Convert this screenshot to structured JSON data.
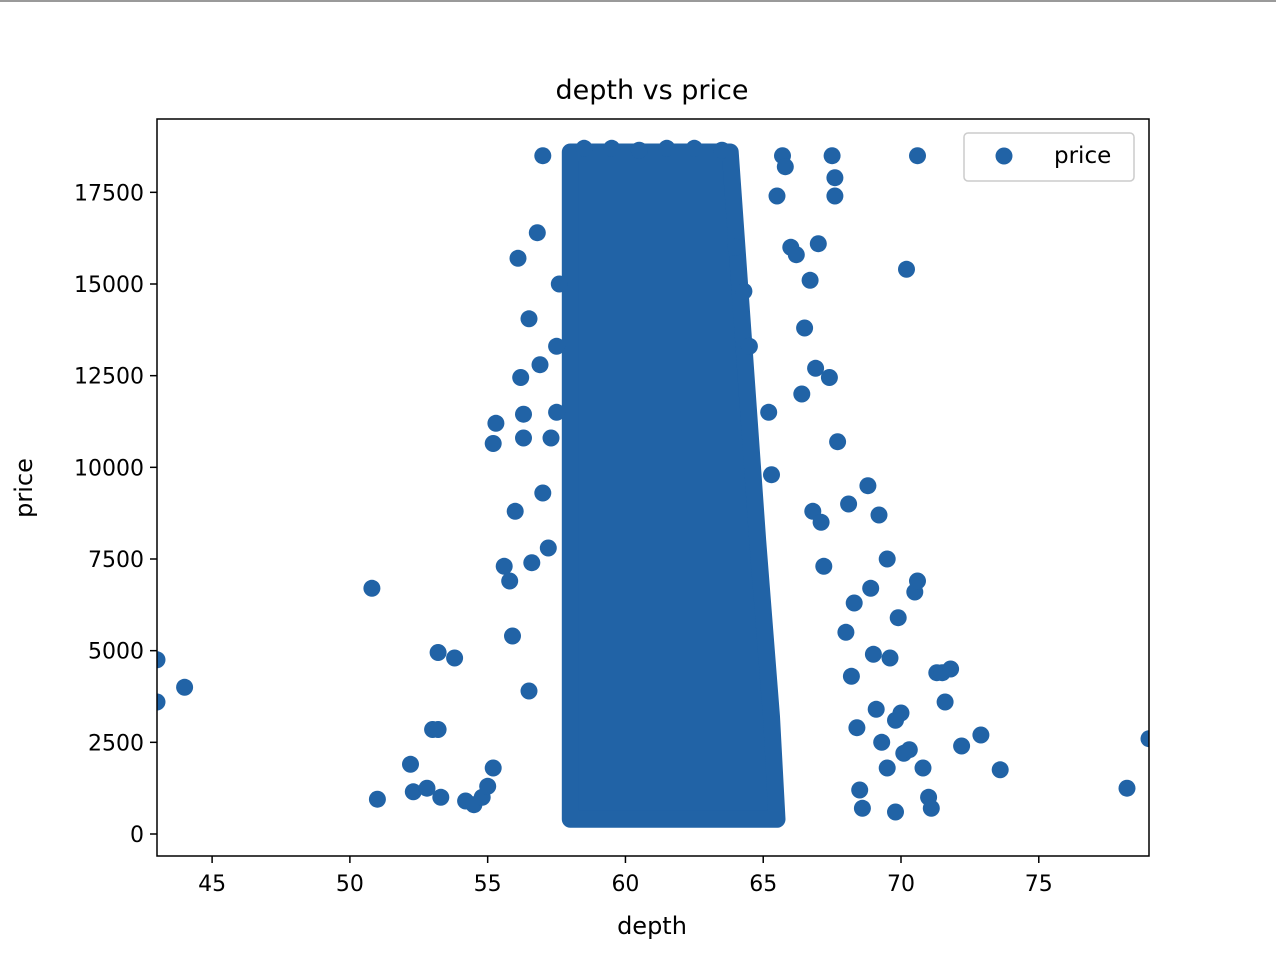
{
  "chart_data": {
    "type": "scatter",
    "title": "depth vs price",
    "xlabel": "depth",
    "ylabel": "price",
    "xlim": [
      43,
      79
    ],
    "ylim": [
      -600,
      19500
    ],
    "xticks": [
      45,
      50,
      55,
      60,
      65,
      70,
      75
    ],
    "yticks": [
      0,
      2500,
      5000,
      7500,
      10000,
      12500,
      15000,
      17500
    ],
    "legend": {
      "placement": "top-right",
      "entries": [
        "price"
      ]
    },
    "grid": false,
    "marker_color": "#2163a6",
    "dense_core": [
      [
        58.0,
        400
      ],
      [
        58.0,
        18600
      ],
      [
        63.8,
        18600
      ],
      [
        64.8,
        8000
      ],
      [
        65.3,
        3200
      ],
      [
        65.5,
        400
      ]
    ],
    "series": [
      {
        "name": "price",
        "x": [
          43.0,
          43.0,
          44.0,
          50.8,
          51.0,
          52.2,
          52.3,
          52.8,
          53.0,
          53.2,
          53.2,
          53.3,
          53.8,
          54.2,
          54.5,
          54.8,
          55.0,
          55.2,
          55.2,
          55.3,
          55.6,
          55.8,
          55.9,
          56.0,
          56.1,
          56.2,
          56.3,
          56.3,
          56.5,
          56.5,
          56.6,
          56.8,
          56.9,
          57.0,
          57.0,
          57.2,
          57.3,
          57.5,
          57.5,
          57.6,
          58.5,
          59.5,
          60.5,
          61.5,
          62.5,
          63.5,
          64.0,
          64.3,
          64.5,
          65.2,
          65.3,
          65.5,
          65.7,
          65.8,
          66.0,
          66.2,
          66.4,
          66.5,
          66.7,
          66.8,
          66.9,
          67.0,
          67.1,
          67.2,
          67.4,
          67.5,
          67.6,
          67.6,
          67.7,
          68.0,
          68.1,
          68.2,
          68.3,
          68.4,
          68.5,
          68.6,
          68.8,
          68.9,
          69.0,
          69.1,
          69.2,
          69.3,
          69.5,
          69.5,
          69.6,
          69.8,
          69.8,
          69.9,
          70.0,
          70.1,
          70.2,
          70.3,
          70.5,
          70.6,
          70.6,
          70.8,
          71.0,
          71.1,
          71.3,
          71.5,
          71.6,
          71.8,
          72.2,
          72.9,
          73.6,
          78.2,
          79.0
        ],
        "y": [
          4750,
          3600,
          4000,
          6700,
          950,
          1900,
          1150,
          1250,
          2850,
          4950,
          2850,
          1000,
          4800,
          900,
          800,
          1000,
          1300,
          1800,
          10650,
          11200,
          7300,
          6900,
          5400,
          8800,
          15700,
          12450,
          11450,
          10800,
          14050,
          3900,
          7400,
          16400,
          12800,
          18500,
          9300,
          7800,
          10800,
          11500,
          13300,
          15000,
          18700,
          18700,
          18650,
          18700,
          18700,
          18650,
          16000,
          14800,
          13300,
          11500,
          9800,
          17400,
          18500,
          18200,
          16000,
          15800,
          12000,
          13800,
          15100,
          8800,
          12700,
          16100,
          8500,
          7300,
          12450,
          18500,
          17900,
          17400,
          10700,
          5500,
          9000,
          4300,
          6300,
          2900,
          1200,
          700,
          9500,
          6700,
          4900,
          3400,
          8700,
          2500,
          7500,
          1800,
          4800,
          3100,
          600,
          5900,
          3300,
          2200,
          15400,
          2300,
          6600,
          6900,
          18500,
          1800,
          1000,
          700,
          4400,
          4400,
          3600,
          4500,
          2400,
          2700,
          1750,
          1250,
          2600
        ]
      }
    ]
  }
}
